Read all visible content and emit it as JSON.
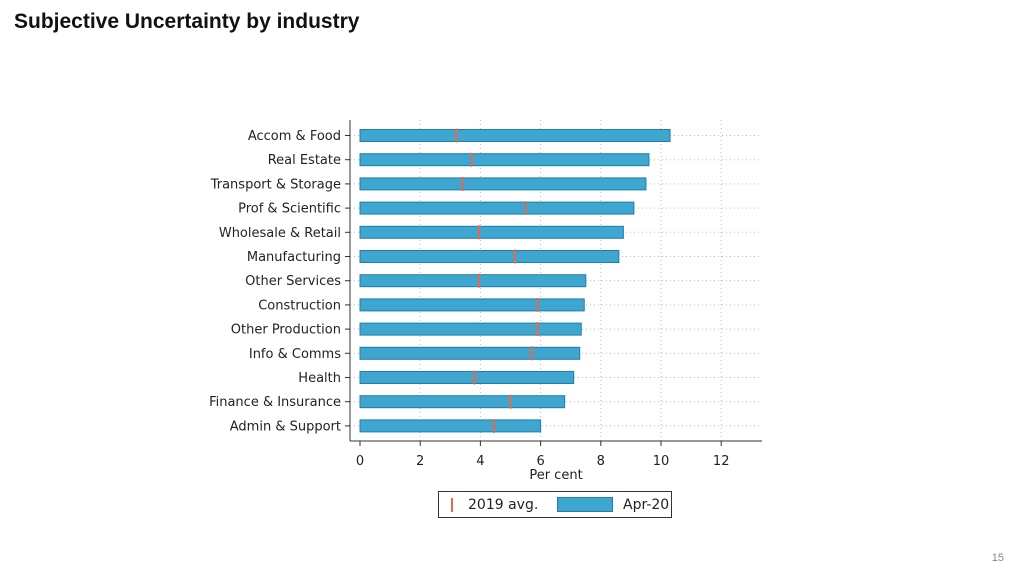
{
  "page": {
    "title": "Subjective Uncertainty by industry",
    "page_number": "15"
  },
  "colors": {
    "bar_fill": "#3ea6cf",
    "bar_stroke": "#1f7fa8",
    "marker": "#e8694a",
    "axis": "#333333",
    "grid": "#b8b8b8"
  },
  "chart_data": {
    "type": "bar",
    "orientation": "horizontal",
    "title": "",
    "xlabel": "Per cent",
    "ylabel": "",
    "xlim": [
      0,
      13
    ],
    "xticks": [
      0,
      2,
      4,
      6,
      8,
      10,
      12
    ],
    "grid": true,
    "legend_position": "bottom",
    "categories": [
      "Accom & Food",
      "Real Estate",
      "Transport & Storage",
      "Prof & Scientific",
      "Wholesale & Retail",
      "Manufacturing",
      "Other Services",
      "Construction",
      "Other Production",
      "Info & Comms",
      "Health",
      "Finance & Insurance",
      "Admin & Support"
    ],
    "series": [
      {
        "name": "Apr-20",
        "kind": "bar",
        "values": [
          10.3,
          9.6,
          9.5,
          9.1,
          8.75,
          8.6,
          7.5,
          7.45,
          7.35,
          7.3,
          7.1,
          6.8,
          6.0
        ]
      },
      {
        "name": "2019 avg.",
        "kind": "marker",
        "values": [
          3.2,
          3.7,
          3.4,
          5.5,
          3.95,
          5.15,
          3.95,
          5.9,
          5.9,
          5.7,
          3.8,
          5.0,
          4.45
        ]
      }
    ]
  }
}
